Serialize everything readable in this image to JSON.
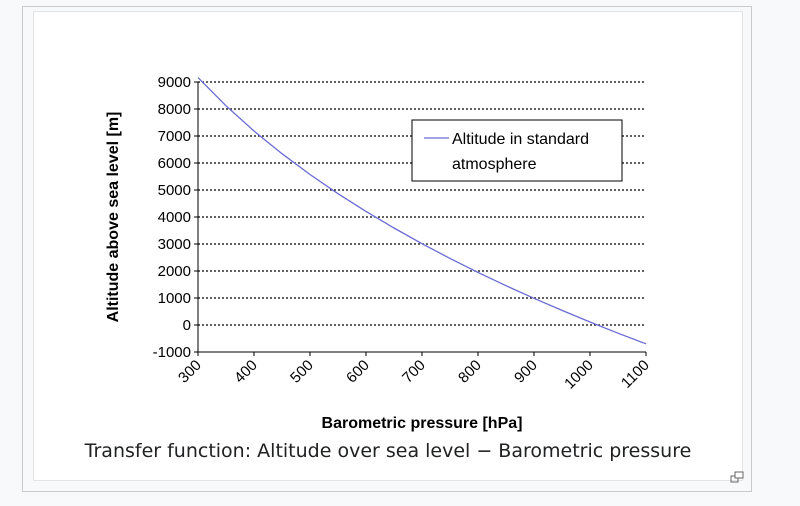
{
  "caption": "Transfer function: Altitude over sea level − Barometric pressure",
  "magnify_icon": "enlarge-icon",
  "chart_data": {
    "type": "line",
    "xlabel": "Barometric pressure [hPa]",
    "ylabel": "Altitude above sea level [m]",
    "xlim": [
      300,
      1100
    ],
    "ylim": [
      -1000,
      9000
    ],
    "xticks": [
      "300",
      "400",
      "500",
      "600",
      "700",
      "800",
      "900",
      "1000",
      "1100"
    ],
    "yticks": [
      "9000",
      "8000",
      "7000",
      "6000",
      "5000",
      "4000",
      "3000",
      "2000",
      "1000",
      "0",
      "-1000"
    ],
    "grid": "horizontal dotted",
    "legend": "top-right",
    "series": [
      {
        "name": "Altitude in standard atmosphere",
        "color": "#6b6bd6",
        "x": [
          300,
          350,
          400,
          450,
          500,
          550,
          600,
          650,
          700,
          750,
          800,
          850,
          900,
          950,
          1000,
          1013.25,
          1050,
          1100
        ],
        "y": [
          9164,
          8117,
          7185,
          6344,
          5574,
          4863,
          4206,
          3593,
          3012,
          2466,
          1949,
          1457,
          988,
          540,
          111,
          0,
          -302,
          -698
        ]
      }
    ]
  }
}
